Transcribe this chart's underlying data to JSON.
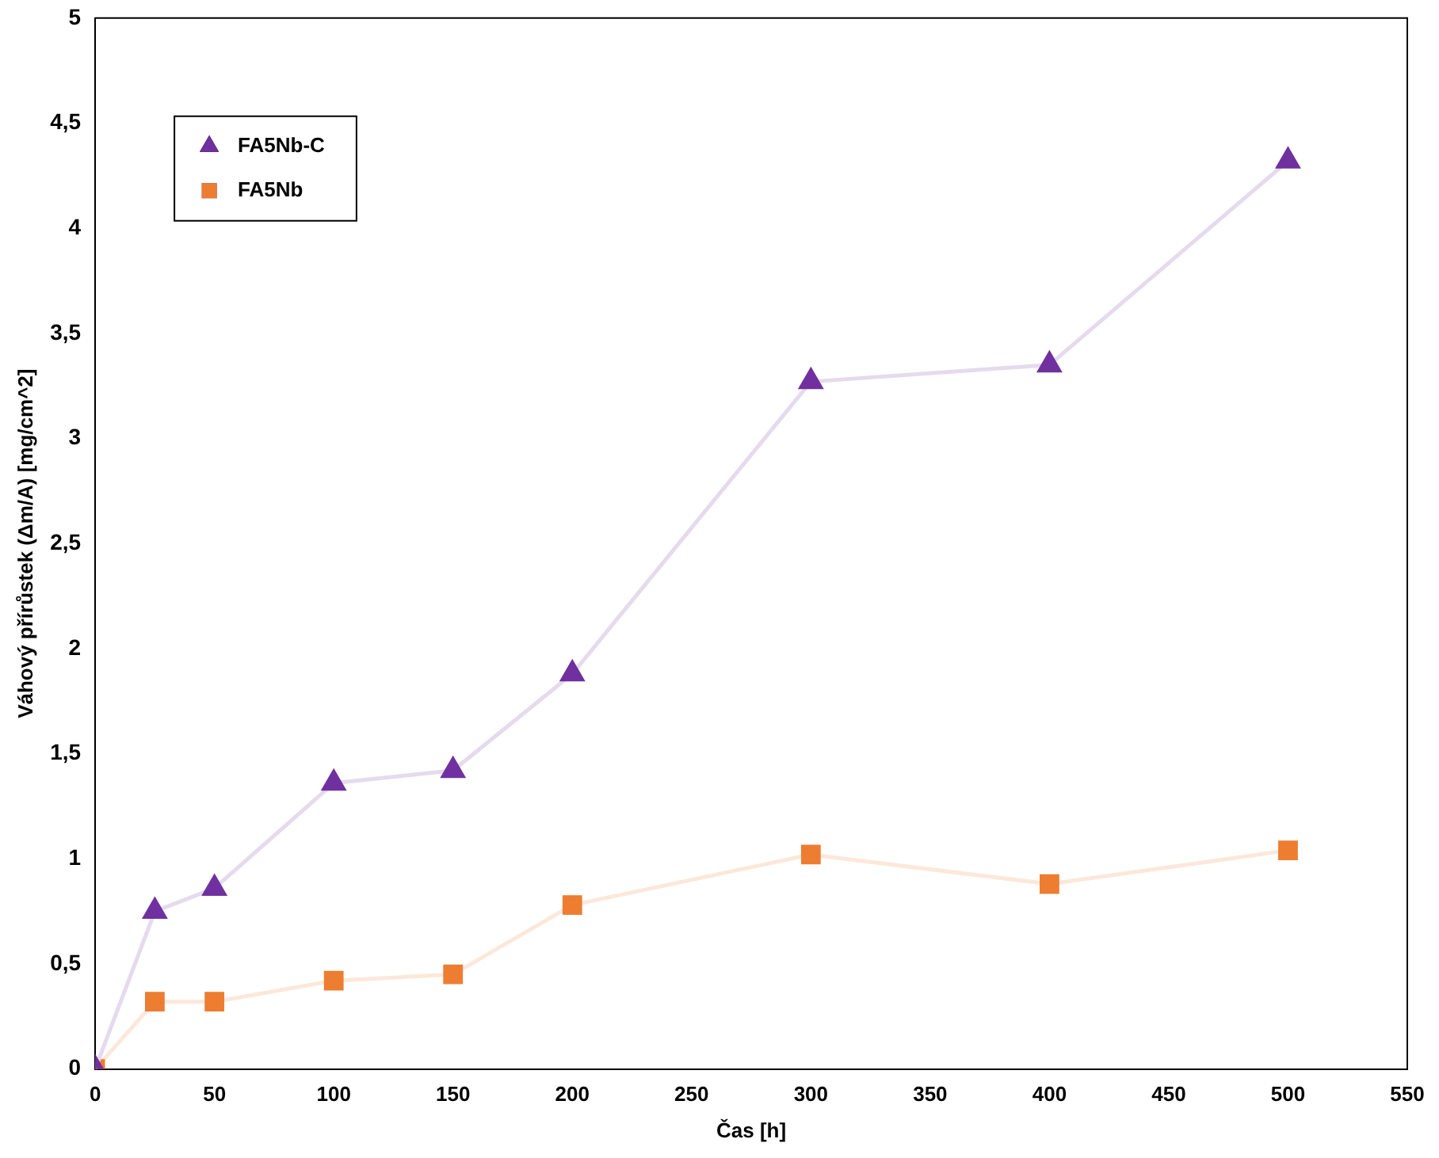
{
  "chart_data": {
    "type": "line",
    "xlabel": "Čas [h]",
    "ylabel": "Váhový přírůstek (Δm/A) [mg/cm^2]",
    "x": [
      0,
      25,
      50,
      100,
      150,
      200,
      300,
      400,
      500
    ],
    "series": [
      {
        "name": "FA5Nb-C",
        "color": "#70309f",
        "marker": "triangle",
        "values": [
          0,
          0.75,
          0.86,
          1.36,
          1.42,
          1.88,
          3.27,
          3.35,
          4.32
        ]
      },
      {
        "name": "FA5Nb",
        "color": "#ed7d31",
        "marker": "square",
        "values": [
          0,
          0.32,
          0.32,
          0.42,
          0.45,
          0.78,
          1.02,
          0.88,
          1.04
        ]
      }
    ],
    "xlim": [
      0,
      550
    ],
    "xticks": [
      0,
      50,
      100,
      150,
      200,
      250,
      300,
      350,
      400,
      450,
      500,
      550
    ],
    "ylim": [
      0,
      5
    ],
    "yticks": [
      0,
      {
        "value": 0.5,
        "label": "0,5"
      },
      1,
      {
        "value": 1.5,
        "label": "1,5"
      },
      2,
      {
        "value": 2.5,
        "label": "2,5"
      },
      3,
      {
        "value": 3.5,
        "label": "3,5"
      },
      4,
      {
        "value": 4.5,
        "label": "4,5"
      },
      5
    ],
    "grid": false,
    "legend": "top left"
  }
}
